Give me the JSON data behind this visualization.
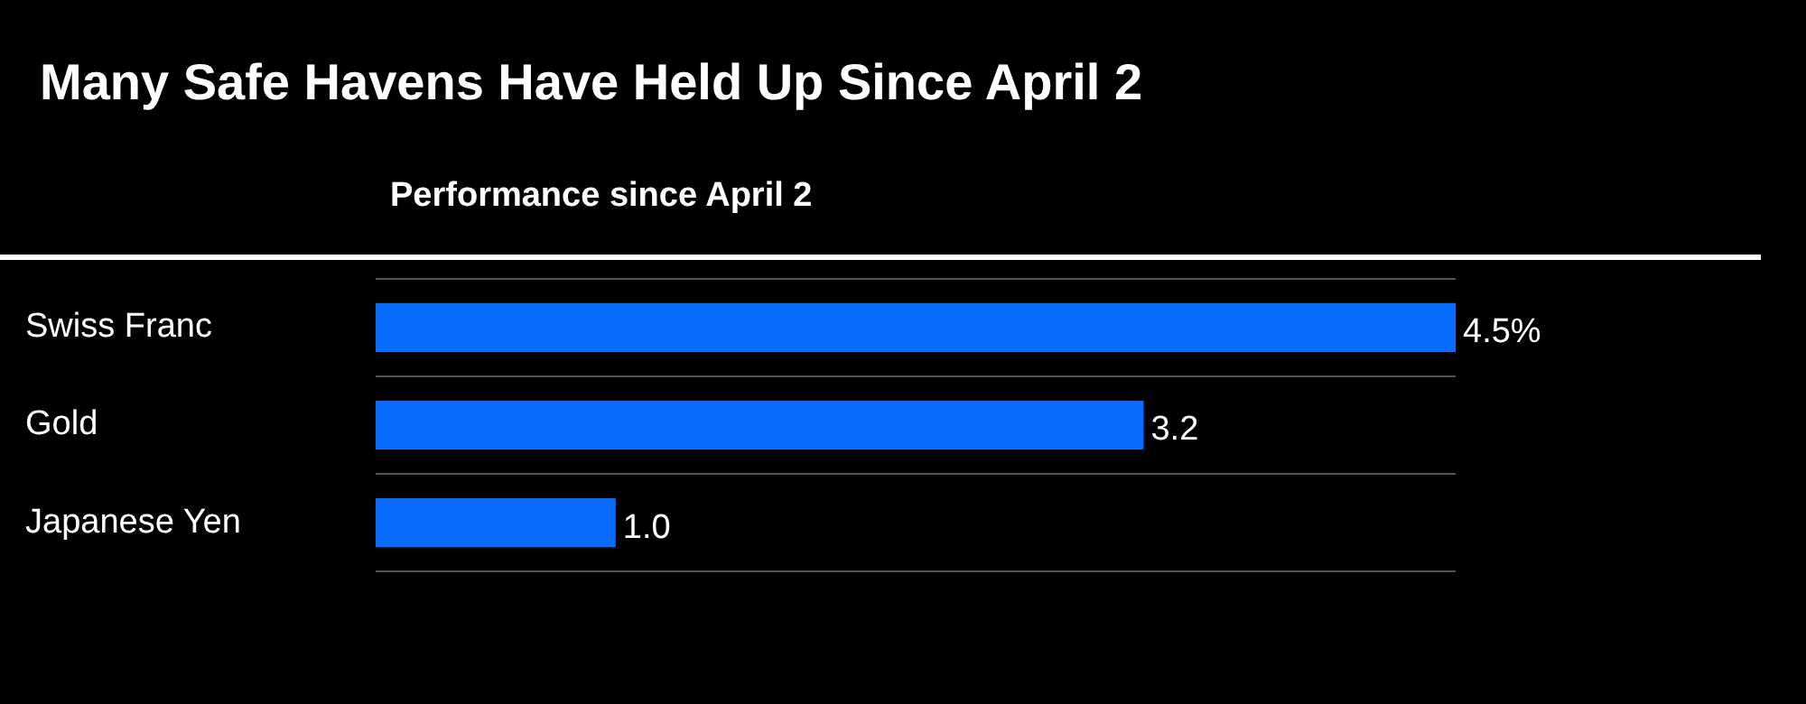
{
  "chart_data": {
    "type": "bar",
    "orientation": "horizontal",
    "title": "Many Safe Havens Have Held Up Since April 2",
    "subtitle": "Performance since April 2",
    "categories": [
      "Swiss Franc",
      "Gold",
      "Japanese Yen"
    ],
    "values": [
      4.5,
      3.2,
      1.0
    ],
    "color": "#0a6cff",
    "value_labels": [
      "4.5%",
      "3.2",
      "1.0"
    ],
    "grid": "y",
    "legend": false
  }
}
